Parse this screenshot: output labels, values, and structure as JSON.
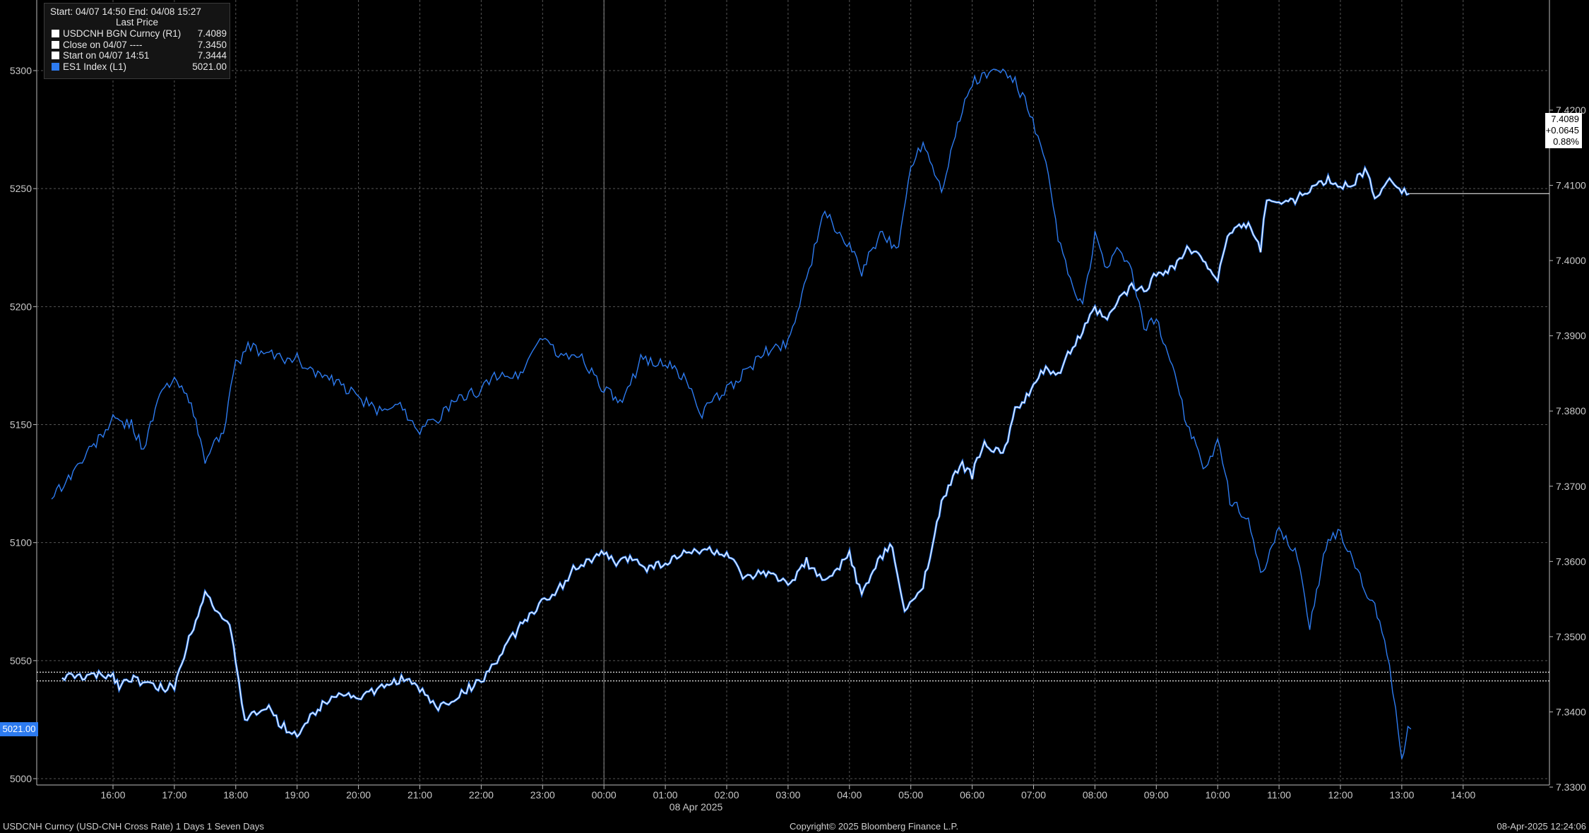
{
  "legend": {
    "range_text": "Start: 04/07 14:50 End: 04/08 15:27",
    "column_header": "Last Price",
    "rows": [
      {
        "label": "USDCNH BGN Curncy  (R1)",
        "value": "7.4089",
        "color": "#ffffff"
      },
      {
        "label": "Close on 04/07 ----",
        "value": "7.3450",
        "color": "#ffffff"
      },
      {
        "label": "Start on 04/07 14:51",
        "value": "7.3444",
        "color": "#ffffff"
      },
      {
        "label": "ES1 Index  (L1)",
        "value": "5021.00",
        "color": "#2d7bf0"
      }
    ]
  },
  "last_price": {
    "value": "7.4089",
    "change": "+0.0645",
    "pct": "0.88%"
  },
  "left_last": "5021.00",
  "date_label": "08 Apr 2025",
  "footer": {
    "left": "USDCNH Curncy (USD-CNH Cross Rate) 1 Days 1 Seven Days",
    "center": "Copyright© 2025 Bloomberg Finance L.P.",
    "right": "08-Apr-2025 12:24:06"
  },
  "chart_data": {
    "type": "line",
    "x_labels": [
      "16:00",
      "17:00",
      "18:00",
      "19:00",
      "20:00",
      "21:00",
      "22:00",
      "23:00",
      "00:00",
      "01:00",
      "02:00",
      "03:00",
      "04:00",
      "05:00",
      "06:00",
      "07:00",
      "08:00",
      "09:00",
      "10:00",
      "11:00",
      "12:00",
      "13:00",
      "14:00"
    ],
    "x_range": [
      "04/07 14:50",
      "04/08 15:27"
    ],
    "left_axis": {
      "ticks": [
        5000,
        5050,
        5100,
        5150,
        5200,
        5250,
        5300
      ],
      "range": [
        4995,
        5330
      ]
    },
    "right_axis": {
      "ticks": [
        "7.3300",
        "7.3400",
        "7.3500",
        "7.3600",
        "7.3700",
        "7.3800",
        "7.3900",
        "7.4000",
        "7.4100",
        "7.4200"
      ],
      "range": [
        7.3285,
        7.4265
      ]
    },
    "reference_lines": {
      "close_0407": 7.345,
      "start_0407": 7.3444
    },
    "grid": true,
    "series": [
      {
        "name": "USDCNH BGN Curncy (R1)",
        "axis": "right",
        "color": "#ffffff",
        "x": [
          -0.83,
          -0.5,
          0,
          0.1,
          0.3,
          0.4,
          0.7,
          1.0,
          1.2,
          1.5,
          1.9,
          2.0,
          2.05,
          2.1,
          2.15,
          2.3,
          2.5,
          2.7,
          3.0,
          3.3,
          3.6,
          4.0,
          4.3,
          4.7,
          5.0,
          5.3,
          5.6,
          6.0,
          6.3,
          6.6,
          6.9,
          7.2,
          7.5,
          7.8,
          8.0,
          8.2,
          8.5,
          8.7,
          9.0,
          9.3,
          9.6,
          10.0,
          10.3,
          10.6,
          11.0,
          11.3,
          11.6,
          12.0,
          12.2,
          12.5,
          12.7,
          12.9,
          13.2,
          13.5,
          13.8,
          14.0,
          14.2,
          14.5,
          14.7,
          15.0,
          15.2,
          15.4,
          15.6,
          15.8,
          16.0,
          16.2,
          16.4,
          16.6,
          16.8,
          17.0,
          17.3,
          17.5,
          17.8,
          18.0,
          18.2,
          18.5,
          18.7,
          18.75,
          18.8,
          19.0,
          19.3,
          19.5,
          19.8,
          20.0,
          20.2,
          20.4,
          20.6,
          20.8,
          21.0,
          21.12
        ],
        "y": [
          7.3446,
          7.3447,
          7.3449,
          7.3435,
          7.3446,
          7.3442,
          7.3432,
          7.3433,
          7.3488,
          7.356,
          7.351,
          7.347,
          7.344,
          7.341,
          7.3392,
          7.3395,
          7.3408,
          7.3385,
          7.337,
          7.34,
          7.3425,
          7.342,
          7.3428,
          7.3445,
          7.343,
          7.3405,
          7.342,
          7.3442,
          7.3473,
          7.351,
          7.354,
          7.3555,
          7.359,
          7.3603,
          7.361,
          7.3598,
          7.3605,
          7.3592,
          7.3598,
          7.361,
          7.3616,
          7.361,
          7.3575,
          7.3585,
          7.357,
          7.36,
          7.357,
          7.361,
          7.3555,
          7.3605,
          7.362,
          7.353,
          7.357,
          7.3675,
          7.373,
          7.3715,
          7.376,
          7.374,
          7.38,
          7.383,
          7.386,
          7.3848,
          7.388,
          7.3905,
          7.3935,
          7.392,
          7.395,
          7.3965,
          7.396,
          7.3982,
          7.3993,
          7.4015,
          7.4,
          7.3975,
          7.404,
          7.405,
          7.4012,
          7.406,
          7.4085,
          7.4075,
          7.4082,
          7.4095,
          7.4107,
          7.4097,
          7.4103,
          7.412,
          7.408,
          7.4112,
          7.4095,
          7.4089
        ]
      },
      {
        "name": "ES1 Index (L1)",
        "axis": "left",
        "color": "#2d7bf0",
        "x": [
          -1.0,
          -0.8,
          -0.5,
          -0.2,
          0,
          0.3,
          0.5,
          0.8,
          1.0,
          1.2,
          1.5,
          1.8,
          2.0,
          2.2,
          2.5,
          2.8,
          3.0,
          3.3,
          3.6,
          4.0,
          4.3,
          4.6,
          5.0,
          5.3,
          5.6,
          6.0,
          6.3,
          6.6,
          7.0,
          7.3,
          7.6,
          8.0,
          8.3,
          8.6,
          9.0,
          9.3,
          9.6,
          10.0,
          10.3,
          10.6,
          11.0,
          11.3,
          11.6,
          12.0,
          12.2,
          12.5,
          12.8,
          13.0,
          13.2,
          13.5,
          13.8,
          14.0,
          14.2,
          14.5,
          14.7,
          14.9,
          15.2,
          15.4,
          15.6,
          15.8,
          16.0,
          16.2,
          16.4,
          16.6,
          16.8,
          17.0,
          17.3,
          17.5,
          17.8,
          18.0,
          18.2,
          18.5,
          18.7,
          19.0,
          19.3,
          19.5,
          19.8,
          20.0,
          20.2,
          20.4,
          20.6,
          20.8,
          20.9,
          21.0,
          21.1,
          21.15
        ],
        "y": [
          5120,
          5125,
          5135,
          5145,
          5152,
          5150,
          5140,
          5165,
          5168,
          5165,
          5135,
          5148,
          5175,
          5183,
          5180,
          5178,
          5178,
          5172,
          5168,
          5162,
          5155,
          5160,
          5148,
          5153,
          5160,
          5165,
          5172,
          5170,
          5188,
          5178,
          5180,
          5165,
          5158,
          5178,
          5176,
          5170,
          5155,
          5165,
          5172,
          5180,
          5185,
          5212,
          5240,
          5225,
          5215,
          5230,
          5225,
          5260,
          5270,
          5250,
          5280,
          5295,
          5298,
          5300,
          5295,
          5285,
          5260,
          5230,
          5210,
          5200,
          5230,
          5215,
          5225,
          5215,
          5190,
          5195,
          5172,
          5150,
          5130,
          5145,
          5118,
          5110,
          5085,
          5105,
          5095,
          5065,
          5102,
          5105,
          5092,
          5080,
          5070,
          5048,
          5030,
          5010,
          5020,
          5021
        ]
      }
    ]
  }
}
